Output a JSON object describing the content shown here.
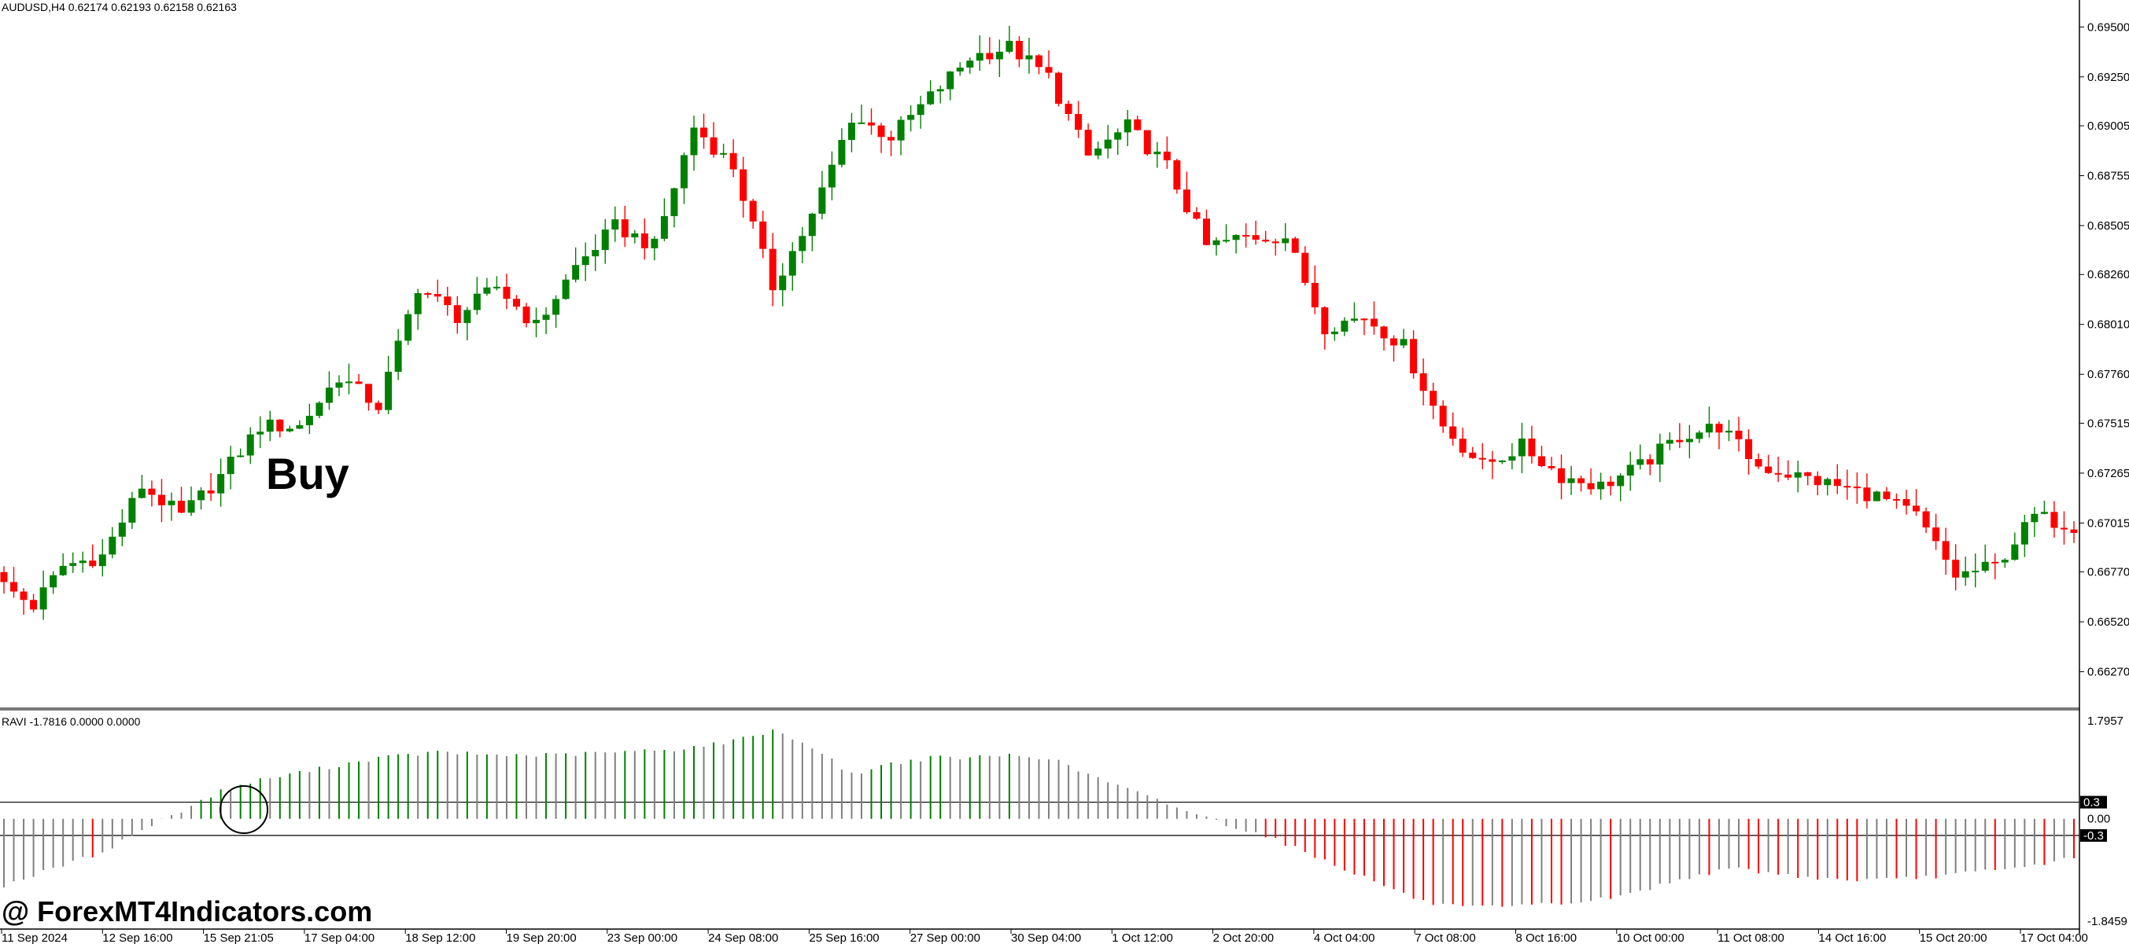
{
  "header": {
    "symbol_info": "AUDUSD,H4  0.62174 0.62193 0.62158 0.62163",
    "indicator_info": "RAVI -1.7816 0.0000 0.0000"
  },
  "annotation": {
    "buy_label": "Buy"
  },
  "watermark": "@ ForexMT4Indicators.com",
  "colors": {
    "bull": "#008000",
    "bear": "#ff0000",
    "neutral": "#7f7f7f",
    "axis": "#000000"
  },
  "chart_data": [
    {
      "type": "candlestick",
      "name": "main",
      "ylim": [
        0.6617,
        0.6958
      ],
      "y_ticks": [
        "0.69500",
        "0.69250",
        "0.69005",
        "0.68755",
        "0.68505",
        "0.68260",
        "0.68010",
        "0.67760",
        "0.67515",
        "0.67265",
        "0.67015",
        "0.66770",
        "0.66520",
        "0.66270"
      ],
      "x_tick_labels": [
        "11 Sep 2024",
        "12 Sep 16:00",
        "15 Sep 21:05",
        "17 Sep 04:00",
        "18 Sep 12:00",
        "19 Sep 20:00",
        "23 Sep 00:00",
        "24 Sep 08:00",
        "25 Sep 16:00",
        "27 Sep 00:00",
        "30 Sep 04:00",
        "1 Oct 12:00",
        "2 Oct 20:00",
        "4 Oct 04:00",
        "7 Oct 08:00",
        "8 Oct 16:00",
        "10 Oct 00:00",
        "11 Oct 08:00",
        "14 Oct 16:00",
        "15 Oct 20:00",
        "17 Oct 04:00"
      ],
      "anchors": [
        [
          0,
          0.667
        ],
        [
          3,
          0.666
        ],
        [
          6,
          0.668
        ],
        [
          10,
          0.6685
        ],
        [
          14,
          0.672
        ],
        [
          18,
          0.6705
        ],
        [
          22,
          0.6725
        ],
        [
          26,
          0.675
        ],
        [
          30,
          0.675
        ],
        [
          34,
          0.6775
        ],
        [
          38,
          0.676
        ],
        [
          42,
          0.682
        ],
        [
          46,
          0.6805
        ],
        [
          50,
          0.682
        ],
        [
          54,
          0.68
        ],
        [
          58,
          0.683
        ],
        [
          62,
          0.685
        ],
        [
          66,
          0.684
        ],
        [
          70,
          0.69
        ],
        [
          74,
          0.688
        ],
        [
          78,
          0.682
        ],
        [
          82,
          0.6855
        ],
        [
          86,
          0.6905
        ],
        [
          90,
          0.6895
        ],
        [
          94,
          0.6915
        ],
        [
          98,
          0.6935
        ],
        [
          102,
          0.694
        ],
        [
          106,
          0.6925
        ],
        [
          110,
          0.6885
        ],
        [
          114,
          0.69
        ],
        [
          118,
          0.688
        ],
        [
          122,
          0.684
        ],
        [
          126,
          0.6845
        ],
        [
          130,
          0.6845
        ],
        [
          134,
          0.68
        ],
        [
          138,
          0.6805
        ],
        [
          142,
          0.679
        ],
        [
          146,
          0.675
        ],
        [
          150,
          0.673
        ],
        [
          154,
          0.674
        ],
        [
          158,
          0.6725
        ],
        [
          162,
          0.672
        ],
        [
          166,
          0.673
        ],
        [
          170,
          0.6745
        ],
        [
          174,
          0.675
        ],
        [
          178,
          0.673
        ],
        [
          182,
          0.6725
        ],
        [
          186,
          0.672
        ],
        [
          190,
          0.6715
        ],
        [
          194,
          0.6705
        ],
        [
          198,
          0.6675
        ],
        [
          202,
          0.668
        ],
        [
          206,
          0.6705
        ],
        [
          210,
          0.67
        ]
      ]
    },
    {
      "type": "histogram",
      "name": "RAVI",
      "ylim": [
        -1.8459,
        1.7957
      ],
      "y_ticks": [
        "1.7957",
        "0.00",
        "-1.8459"
      ],
      "levels": [
        "0.3",
        "-0.3"
      ],
      "anchors": [
        [
          0,
          -1.2
        ],
        [
          10,
          -0.6
        ],
        [
          14,
          -0.2
        ],
        [
          18,
          0.15
        ],
        [
          22,
          0.5
        ],
        [
          26,
          0.7
        ],
        [
          32,
          0.9
        ],
        [
          38,
          1.1
        ],
        [
          44,
          1.2
        ],
        [
          50,
          1.15
        ],
        [
          56,
          1.15
        ],
        [
          62,
          1.2
        ],
        [
          68,
          1.25
        ],
        [
          74,
          1.4
        ],
        [
          78,
          1.6
        ],
        [
          82,
          1.3
        ],
        [
          86,
          0.8
        ],
        [
          90,
          1.0
        ],
        [
          94,
          1.1
        ],
        [
          98,
          1.1
        ],
        [
          102,
          1.15
        ],
        [
          106,
          1.1
        ],
        [
          110,
          0.8
        ],
        [
          116,
          0.4
        ],
        [
          120,
          0.15
        ],
        [
          124,
          -0.1
        ],
        [
          128,
          -0.3
        ],
        [
          132,
          -0.6
        ],
        [
          136,
          -0.9
        ],
        [
          140,
          -1.2
        ],
        [
          144,
          -1.5
        ],
        [
          148,
          -1.6
        ],
        [
          152,
          -1.6
        ],
        [
          156,
          -1.55
        ],
        [
          160,
          -1.5
        ],
        [
          164,
          -1.4
        ],
        [
          168,
          -1.2
        ],
        [
          172,
          -1.0
        ],
        [
          176,
          -0.9
        ],
        [
          180,
          -1.0
        ],
        [
          186,
          -1.1
        ],
        [
          192,
          -1.1
        ],
        [
          198,
          -1.0
        ],
        [
          204,
          -0.9
        ],
        [
          210,
          -0.7
        ]
      ]
    }
  ]
}
